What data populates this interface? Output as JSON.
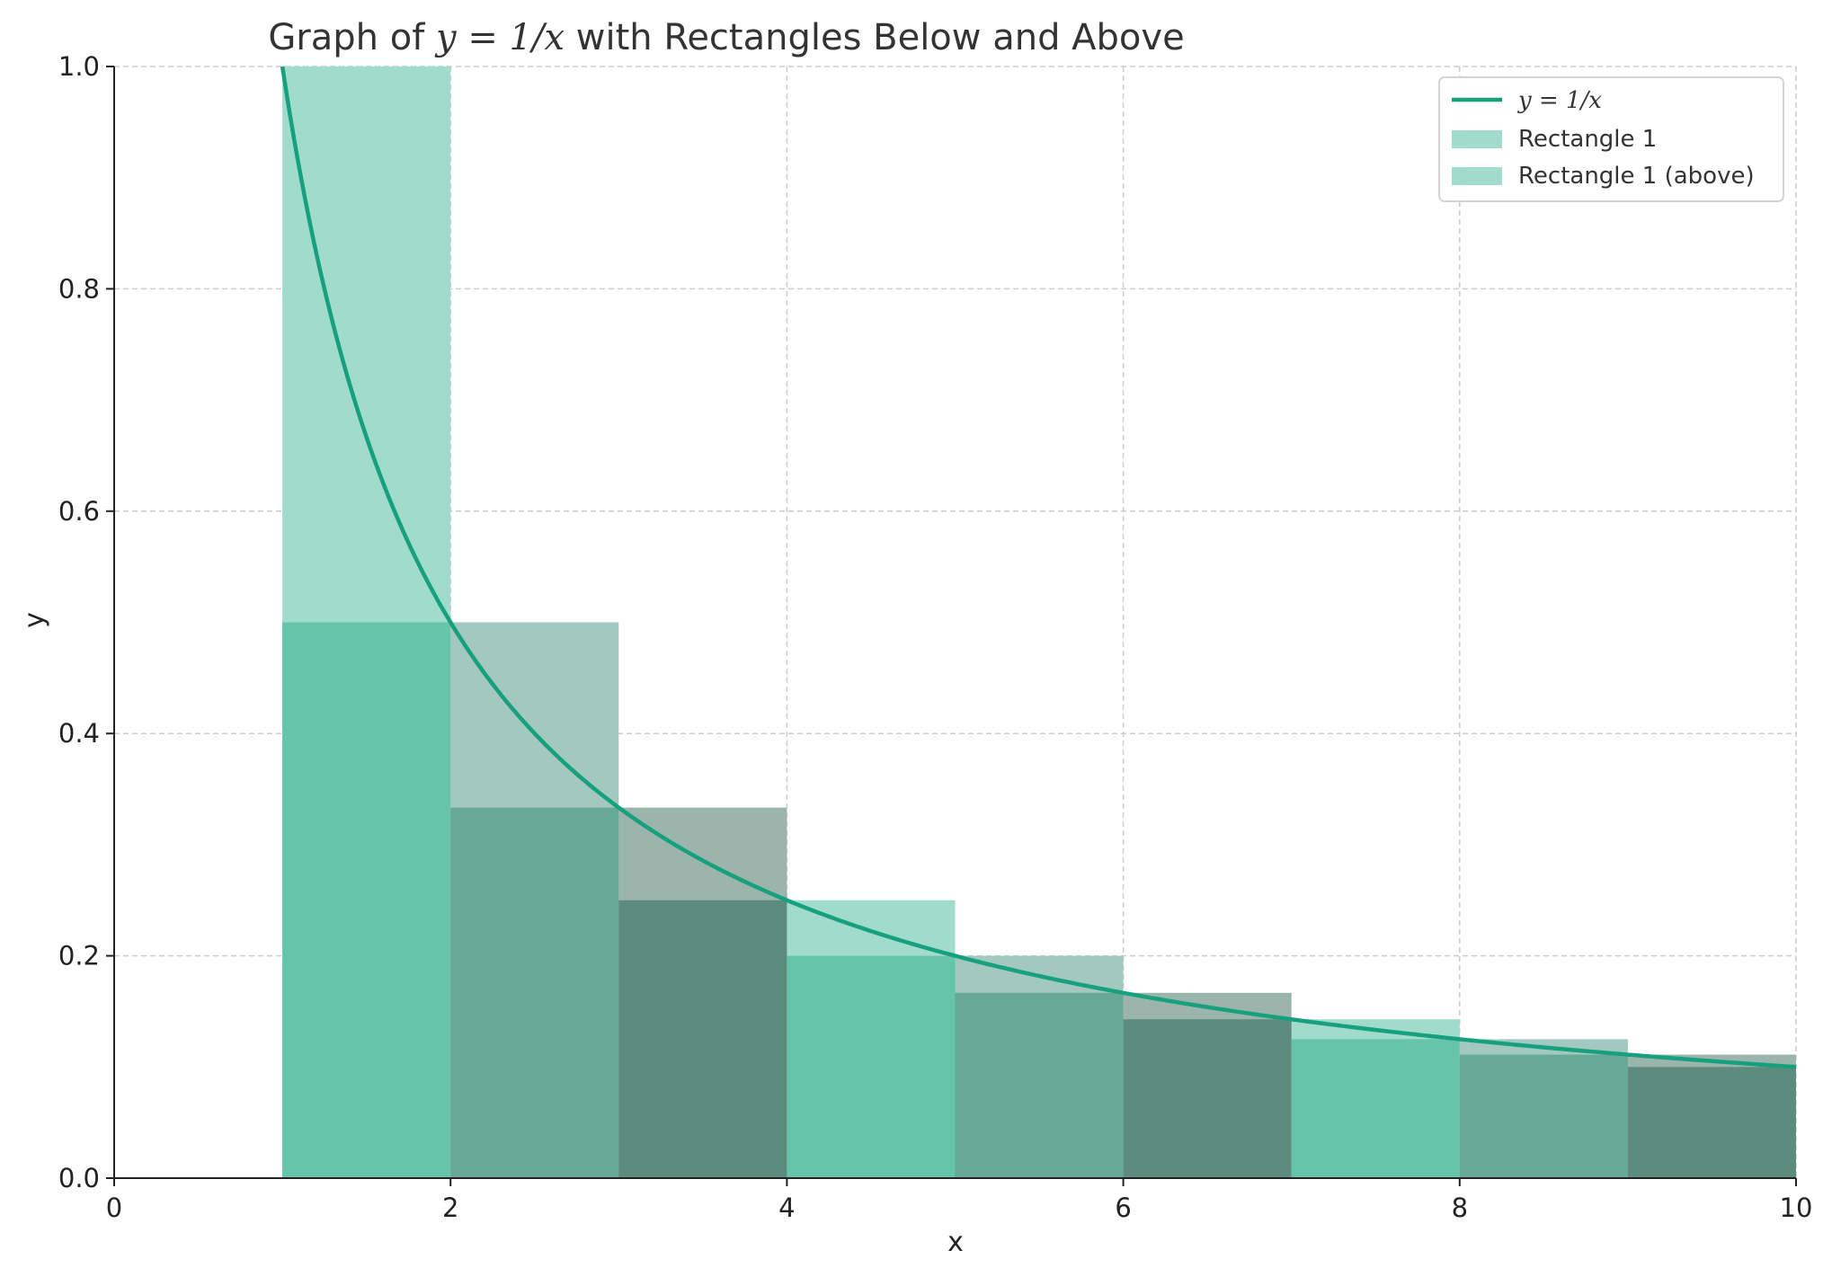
{
  "chart_data": {
    "type": "bar",
    "title": "Graph of y = 1/x with Rectangles Below and Above",
    "title_prefix": "Graph of ",
    "title_math": "y = 1/x",
    "title_suffix": " with Rectangles Below and Above",
    "xlabel": "x",
    "ylabel": "y",
    "xlim": [
      0,
      10
    ],
    "ylim": [
      0,
      1.0
    ],
    "xticks": [
      "0",
      "2",
      "4",
      "6",
      "8",
      "10"
    ],
    "xtick_values": [
      0,
      2,
      4,
      6,
      8,
      10
    ],
    "yticks": [
      "0.0",
      "0.2",
      "0.4",
      "0.6",
      "0.8",
      "1.0"
    ],
    "ytick_values": [
      0,
      0.2,
      0.4,
      0.6,
      0.8,
      1.0
    ],
    "grid": true,
    "legend_position": "top-right",
    "legend": {
      "curve": "y = 1/x",
      "rect_below": "Rectangle 1",
      "rect_above": "Rectangle 1 (above)"
    },
    "curve": {
      "name": "y = 1/x",
      "x_start": 1,
      "x_end": 10,
      "color": "#16a07e"
    },
    "rectangles_above": [
      {
        "x0": 1,
        "x1": 2,
        "height": 1.0
      },
      {
        "x0": 2,
        "x1": 3,
        "height": 0.5
      },
      {
        "x0": 3,
        "x1": 4,
        "height": 0.3333
      },
      {
        "x0": 4,
        "x1": 5,
        "height": 0.25
      },
      {
        "x0": 5,
        "x1": 6,
        "height": 0.2
      },
      {
        "x0": 6,
        "x1": 7,
        "height": 0.1667
      },
      {
        "x0": 7,
        "x1": 8,
        "height": 0.1429
      },
      {
        "x0": 8,
        "x1": 9,
        "height": 0.125
      },
      {
        "x0": 9,
        "x1": 10,
        "height": 0.1111
      }
    ],
    "rectangles_below": [
      {
        "x0": 1,
        "x1": 2,
        "height": 0.5
      },
      {
        "x0": 2,
        "x1": 3,
        "height": 0.3333
      },
      {
        "x0": 3,
        "x1": 4,
        "height": 0.25
      },
      {
        "x0": 4,
        "x1": 5,
        "height": 0.2
      },
      {
        "x0": 5,
        "x1": 6,
        "height": 0.1667
      },
      {
        "x0": 6,
        "x1": 7,
        "height": 0.1429
      },
      {
        "x0": 7,
        "x1": 8,
        "height": 0.125
      },
      {
        "x0": 8,
        "x1": 9,
        "height": 0.1111
      },
      {
        "x0": 9,
        "x1": 10,
        "height": 0.1
      }
    ],
    "colors": {
      "above_cycle": [
        "#a0dbcb",
        "#a2c8bf",
        "#9bb5ad"
      ],
      "below_cycle": [
        "#66c4ab",
        "#68a897",
        "#5d8b7e"
      ],
      "legend_swatch": "#a0dbcb"
    }
  }
}
